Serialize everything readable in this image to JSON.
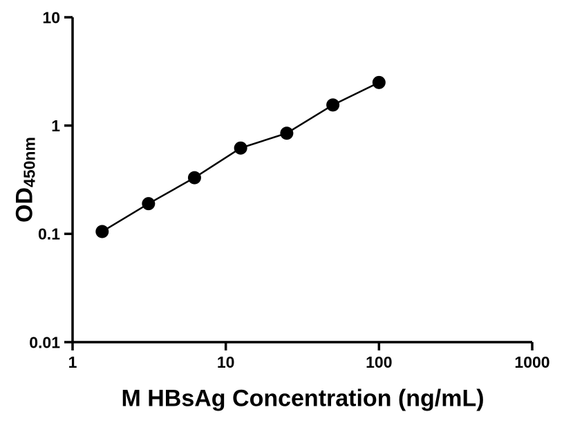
{
  "chart_data": {
    "type": "scatter",
    "connect_points": true,
    "title": "",
    "xlabel": "M HBsAg Concentration (ng/mL)",
    "ylabel_main": "OD",
    "ylabel_sub": "450nm",
    "xscale": "log",
    "yscale": "log",
    "xlim": [
      1,
      1000
    ],
    "ylim": [
      0.01,
      10
    ],
    "grid": false,
    "background": "#ffffff",
    "axis_color": "#000000",
    "x_ticks": [
      {
        "value": 1,
        "label": "1"
      },
      {
        "value": 10,
        "label": "10"
      },
      {
        "value": 100,
        "label": "100"
      },
      {
        "value": 1000,
        "label": "1000"
      }
    ],
    "y_ticks": [
      {
        "value": 0.01,
        "label": "0.01"
      },
      {
        "value": 0.1,
        "label": "0.1"
      },
      {
        "value": 1,
        "label": "1"
      },
      {
        "value": 10,
        "label": "10"
      }
    ],
    "series": [
      {
        "x": [
          1.56,
          3.13,
          6.25,
          12.5,
          25,
          50,
          100
        ],
        "y": [
          0.105,
          0.19,
          0.33,
          0.62,
          0.85,
          1.55,
          2.5
        ],
        "marker": "circle",
        "marker_color": "#000000",
        "line_color": "#000000"
      }
    ]
  }
}
